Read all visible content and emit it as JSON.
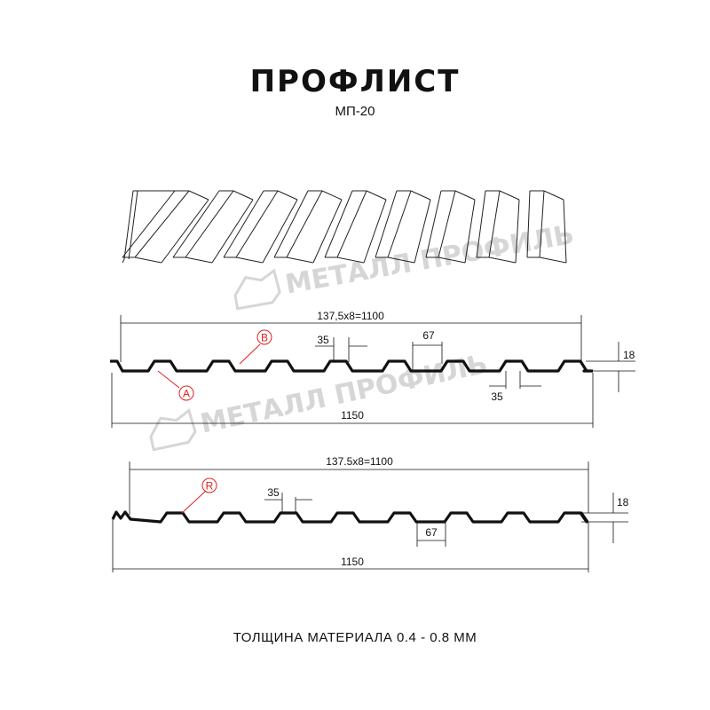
{
  "header": {
    "title": "ПРОФЛИСТ",
    "subtitle": "МП-20"
  },
  "watermark": {
    "text": "МЕТАЛЛ ПРОФИЛЬ"
  },
  "profile_1": {
    "pitch_label": "137,5x8=1100",
    "width_label": "1150",
    "crest_label": "35",
    "valley_label": "35",
    "gap_label": "67",
    "height_label": "18",
    "marker_a": "A",
    "marker_b": "B"
  },
  "profile_2": {
    "pitch_label": "137.5x8=1100",
    "width_label": "1150",
    "crest_label": "35",
    "gap_label": "67",
    "height_label": "18",
    "marker_r": "R"
  },
  "footer": {
    "thickness": "ТОЛЩИНА МАТЕРИАЛА 0.4 - 0.8 ММ"
  },
  "colors": {
    "line": "#111111",
    "marker": "#e02020",
    "watermark": "#d6d6d6"
  }
}
